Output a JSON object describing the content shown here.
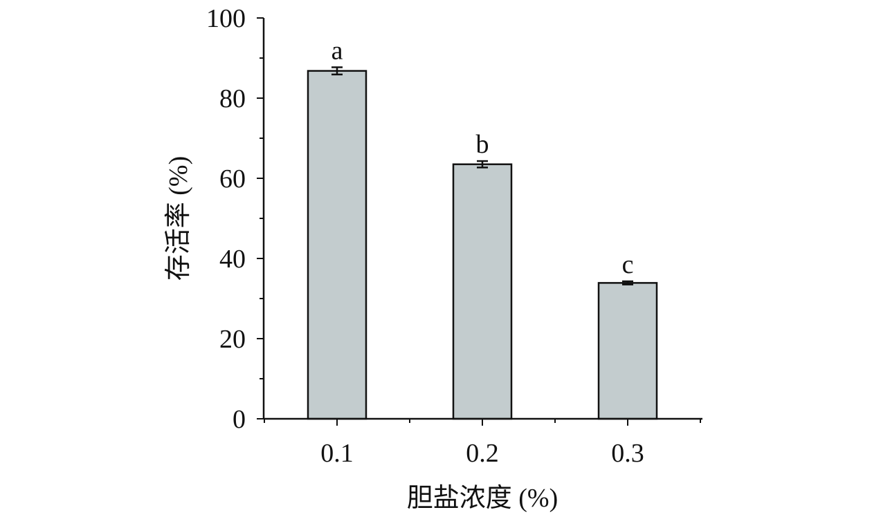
{
  "chart_data": {
    "type": "bar",
    "categories": [
      "0.1",
      "0.2",
      "0.3"
    ],
    "values": [
      86.8,
      63.5,
      33.9
    ],
    "errors": [
      0.9,
      0.8,
      0.4
    ],
    "significance_labels": [
      "a",
      "b",
      "c"
    ],
    "xlabel": "胆盐浓度 (%)",
    "ylabel": "存活率 (%)",
    "ylim": [
      0,
      100
    ],
    "yticks": [
      "0",
      "20",
      "40",
      "60",
      "80",
      "100"
    ],
    "grid": false,
    "legend": "none",
    "colors": {
      "bar_fill": "#c3ccce",
      "bar_stroke": "#111111",
      "axis": "#111111"
    }
  }
}
